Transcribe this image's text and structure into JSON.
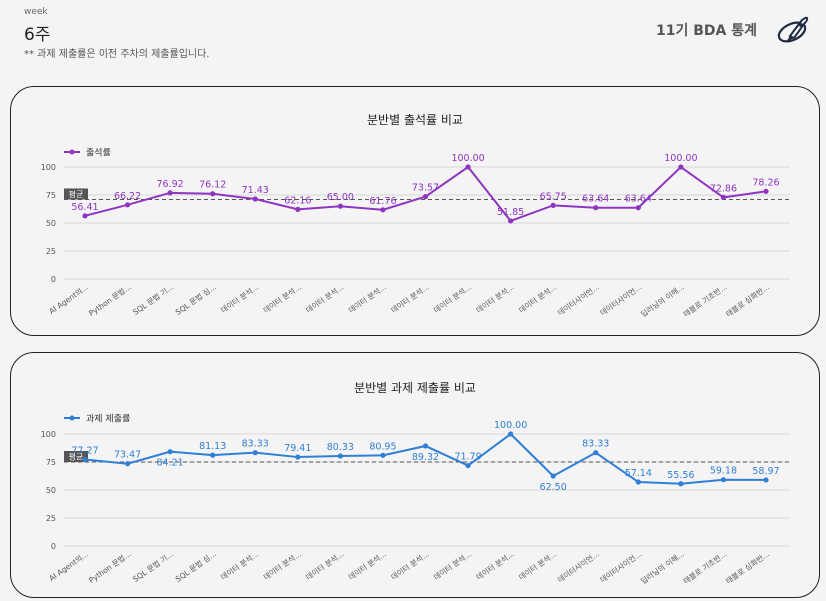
{
  "header": {
    "week_label": "week",
    "week_value": "6주",
    "note": "** 과제 제출률은 이전 주차의 제출률입니다.",
    "brand": "11기 BDA 통계",
    "logo_icon": "rocket-icon"
  },
  "colors": {
    "attendance": "#8e35c2",
    "assignment": "#2f7fd6",
    "avg_line": "#555555",
    "grid": "#d9d9d9",
    "avg_badge_bg": "#555555"
  },
  "chart_data": [
    {
      "type": "line",
      "title": "분반별 출석률 비교",
      "legend": "출석률",
      "avg_label": "평균",
      "avg_value": 71,
      "ylim": [
        0,
        100
      ],
      "yticks": [
        0,
        25,
        50,
        75,
        100
      ],
      "categories": [
        "AI Agent의...",
        "Python 문법...",
        "SQL 문법 기...",
        "SQL 문법 심...",
        "데이터 분석...",
        "데이터 분석...",
        "데이터 분석...",
        "데이터 분석...",
        "데이터 분석...",
        "데이터 분석...",
        "데이터 분석...",
        "데이터 분석...",
        "데이터사이언...",
        "데이터사이언...",
        "딥러닝의 이해...",
        "태블로 기초반...",
        "태블로 심화반..."
      ],
      "values": [
        56.41,
        66.22,
        76.92,
        76.12,
        71.43,
        62.16,
        65.0,
        61.76,
        73.57,
        100.0,
        51.85,
        65.75,
        63.64,
        63.64,
        100.0,
        72.86,
        78.26
      ],
      "value_labels": [
        "56.41",
        "66.22",
        "76.92",
        "76.12",
        "71.43",
        "62.16",
        "65.00",
        "61.76",
        "73.57",
        "100.00",
        "51.85",
        "65.75",
        "63.64",
        "63.64",
        "100.00",
        "72.86",
        "78.26"
      ],
      "label_pos": [
        "above",
        "above",
        "above",
        "above",
        "above",
        "above",
        "above",
        "above",
        "above",
        "above",
        "above",
        "above",
        "above",
        "above",
        "above",
        "above",
        "above"
      ]
    },
    {
      "type": "line",
      "title": "분반별 과제 제출률 비교",
      "legend": "과제 제출률",
      "avg_label": "평균",
      "avg_value": 75,
      "ylim": [
        0,
        100
      ],
      "yticks": [
        0,
        25,
        50,
        75,
        100
      ],
      "categories": [
        "AI Agent의...",
        "Python 문법...",
        "SQL 문법 기...",
        "SQL 문법 심...",
        "데이터 분석...",
        "데이터 분석...",
        "데이터 분석...",
        "데이터 분석...",
        "데이터 분석...",
        "데이터 분석...",
        "데이터 분석...",
        "데이터 분석...",
        "데이터사이언...",
        "데이터사이언...",
        "딥러닝의 이해...",
        "태블로 기초반...",
        "태블로 심화반..."
      ],
      "values": [
        77.27,
        73.47,
        84.21,
        81.13,
        83.33,
        79.41,
        80.33,
        80.95,
        89.32,
        71.79,
        100.0,
        62.5,
        83.33,
        57.14,
        55.56,
        59.18,
        58.97
      ],
      "value_labels": [
        "77.27",
        "73.47",
        "84.21",
        "81.13",
        "83.33",
        "79.41",
        "80.33",
        "80.95",
        "89.32",
        "71.79",
        "100.00",
        "62.50",
        "83.33",
        "57.14",
        "55.56",
        "59.18",
        "58.97"
      ],
      "label_pos": [
        "above",
        "above",
        "below",
        "above",
        "above",
        "above",
        "above",
        "above",
        "below",
        "above",
        "above",
        "below",
        "above",
        "above",
        "above",
        "above",
        "above"
      ]
    }
  ]
}
